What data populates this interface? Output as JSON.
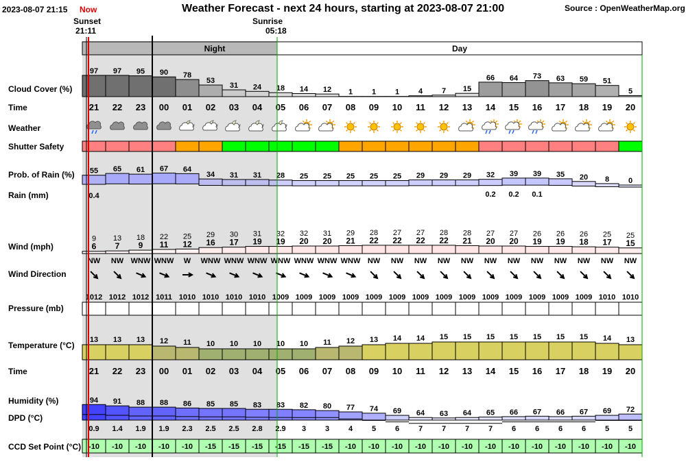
{
  "header": {
    "datetime": "2023-08-07 21:15",
    "now_label": "Now",
    "now_color": "#e00000",
    "title": "Weather Forecast - next 24 hours, starting at 2023-08-07 21:00",
    "source": "Source : OpenWeatherMap.org"
  },
  "sun": {
    "sunset_label": "Sunset",
    "sunset_time": "21:11",
    "sunrise_label": "Sunrise",
    "sunrise_time": "05:18"
  },
  "bands": {
    "night": "Night",
    "day": "Day"
  },
  "row_labels": {
    "cloud": "Cloud Cover (%)",
    "time": "Time",
    "weather": "Weather",
    "shutter": "Shutter Safety",
    "rain_prob": "Prob. of Rain (%)",
    "rain_mm": "Rain (mm)",
    "wind": "Wind (mph)",
    "wind_dir": "Wind Direction",
    "pressure": "Pressure (mb)",
    "temperature": "Temperature (°C)",
    "time2": "Time",
    "humidity": "Humidity (%)",
    "dpd": "DPD (°C)",
    "ccd": "CCD Set Point (°C)"
  },
  "colors": {
    "night_shade": "#e0e0e0",
    "cloud_dark": "#707070",
    "shutter_red": "#ff8080",
    "shutter_orange": "#ffa500",
    "shutter_green": "#00ff00",
    "rain_bar": "#a0a0ff",
    "wind_bar": "#ffa0a0",
    "temp_bar": "#d8d060",
    "humidity_bar": "#4040ff",
    "ccd_bar": "#b0ffb0",
    "sunrise_line": "#00aa00",
    "sunset_line": "#e00000"
  },
  "hours": [
    "21",
    "22",
    "23",
    "00",
    "01",
    "02",
    "03",
    "04",
    "05",
    "06",
    "07",
    "08",
    "09",
    "10",
    "11",
    "12",
    "13",
    "14",
    "15",
    "16",
    "17",
    "18",
    "19",
    "20"
  ],
  "cloud_cover": [
    97,
    97,
    95,
    90,
    78,
    53,
    31,
    24,
    18,
    14,
    12,
    1,
    1,
    1,
    4,
    7,
    15,
    66,
    64,
    73,
    63,
    59,
    51,
    5
  ],
  "weather_icons": [
    "rain-cloud-icon",
    "cloud-icon",
    "cloud-icon",
    "cloud-icon",
    "partly-cloudy-night-icon",
    "partly-cloudy-night-icon",
    "moon-cloud-icon",
    "moon-cloud-icon",
    "moon-cloud-icon",
    "sun-cloud-icon",
    "sun-cloud-icon",
    "sun-icon",
    "sun-icon",
    "sun-icon",
    "sun-icon",
    "sun-icon",
    "sun-cloud-icon",
    "rain-sun-cloud-icon",
    "rain-sun-cloud-icon",
    "rain-sun-cloud-icon",
    "sun-cloud-icon",
    "sun-cloud-icon",
    "sun-cloud-icon",
    "sun-icon"
  ],
  "shutter_safety": [
    "red",
    "red",
    "red",
    "red",
    "orange",
    "orange",
    "green",
    "green",
    "green",
    "green",
    "green",
    "orange",
    "orange",
    "orange",
    "orange",
    "orange",
    "orange",
    "red",
    "red",
    "red",
    "red",
    "red",
    "red",
    "green"
  ],
  "rain_probability": [
    55,
    65,
    61,
    67,
    64,
    34,
    31,
    31,
    28,
    25,
    25,
    25,
    25,
    25,
    29,
    29,
    29,
    32,
    39,
    39,
    35,
    20,
    8,
    0
  ],
  "rain_mm": [
    "0.4",
    "",
    "",
    "",
    "",
    "",
    "",
    "",
    "",
    "",
    "",
    "",
    "",
    "",
    "",
    "",
    "",
    "0.2",
    "0.2",
    "0.1",
    "",
    "",
    "",
    ""
  ],
  "wind_gust": [
    9,
    13,
    18,
    22,
    25,
    29,
    30,
    31,
    32,
    32,
    31,
    29,
    28,
    27,
    27,
    28,
    28,
    27,
    27,
    26,
    26,
    26,
    25,
    25
  ],
  "wind_speed": [
    6,
    7,
    9,
    11,
    12,
    16,
    17,
    19,
    19,
    20,
    20,
    21,
    22,
    22,
    22,
    22,
    21,
    20,
    20,
    19,
    19,
    18,
    17,
    15
  ],
  "wind_direction": [
    "NW",
    "NW",
    "WNW",
    "WNW",
    "W",
    "WNW",
    "WNW",
    "WNW",
    "WNW",
    "WNW",
    "WNW",
    "WNW",
    "NW",
    "NW",
    "NW",
    "NW",
    "NW",
    "NW",
    "NW",
    "NW",
    "NW",
    "NW",
    "NW",
    "NW"
  ],
  "pressure": [
    1012,
    1012,
    1012,
    1011,
    1010,
    1010,
    1010,
    1010,
    1009,
    1009,
    1009,
    1009,
    1009,
    1009,
    1009,
    1009,
    1009,
    1009,
    1009,
    1009,
    1009,
    1009,
    1010,
    1010
  ],
  "temperature": [
    13,
    13,
    13,
    12,
    11,
    10,
    10,
    10,
    10,
    10,
    11,
    12,
    13,
    14,
    14,
    15,
    15,
    15,
    15,
    15,
    15,
    15,
    14,
    13
  ],
  "humidity": [
    94,
    91,
    88,
    88,
    86,
    85,
    85,
    83,
    83,
    82,
    80,
    77,
    74,
    69,
    64,
    63,
    64,
    65,
    66,
    67,
    66,
    67,
    69,
    72
  ],
  "dpd": [
    "0.9",
    "1.4",
    "1.9",
    "1.9",
    "2.3",
    "2.5",
    "2.5",
    "2.8",
    "2.9",
    "3",
    "3",
    "4",
    "5",
    "6",
    "7",
    "7",
    "7",
    "7",
    "6",
    "6",
    "6",
    "6",
    "5",
    "5"
  ],
  "ccd_set_point": [
    -10,
    -10,
    -10,
    -10,
    -10,
    -15,
    -15,
    -15,
    -15,
    -15,
    -15,
    -10,
    -10,
    -10,
    -10,
    -10,
    -10,
    -10,
    -10,
    -10,
    -10,
    -10,
    -10,
    -10
  ]
}
